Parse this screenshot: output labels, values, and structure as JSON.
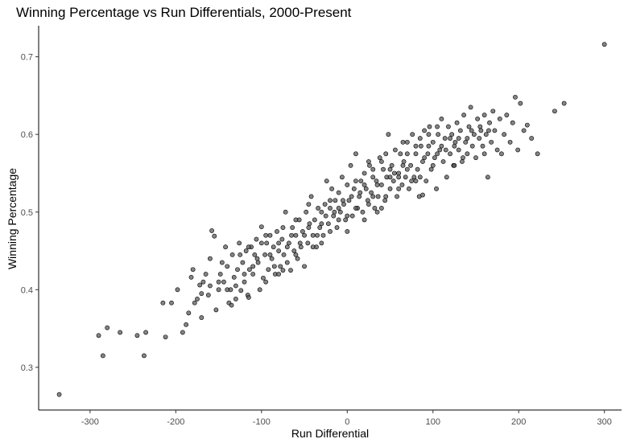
{
  "chart_data": {
    "type": "scatter",
    "title": "Winning Percentage vs Run Differentials, 2000-Present",
    "xlabel": "Run Differential",
    "ylabel": "Winning Percentage",
    "xlim": [
      -360,
      320
    ],
    "ylim": [
      0.245,
      0.74
    ],
    "xticks": [
      -300,
      -200,
      -100,
      0,
      100,
      200,
      300
    ],
    "yticks": [
      0.3,
      0.4,
      0.5,
      0.6,
      0.7
    ],
    "grid": false,
    "point_color": "#555555",
    "points": [
      [
        -336,
        0.265
      ],
      [
        -290,
        0.341
      ],
      [
        -285,
        0.315
      ],
      [
        -280,
        0.351
      ],
      [
        -265,
        0.345
      ],
      [
        -245,
        0.341
      ],
      [
        -237,
        0.315
      ],
      [
        -235,
        0.345
      ],
      [
        -215,
        0.383
      ],
      [
        -212,
        0.339
      ],
      [
        -205,
        0.383
      ],
      [
        -198,
        0.4
      ],
      [
        -192,
        0.345
      ],
      [
        -188,
        0.355
      ],
      [
        -185,
        0.37
      ],
      [
        -182,
        0.416
      ],
      [
        -180,
        0.426
      ],
      [
        -178,
        0.383
      ],
      [
        -175,
        0.388
      ],
      [
        -172,
        0.406
      ],
      [
        -170,
        0.364
      ],
      [
        -168,
        0.41
      ],
      [
        -165,
        0.42
      ],
      [
        -162,
        0.393
      ],
      [
        -160,
        0.44
      ],
      [
        -158,
        0.476
      ],
      [
        -155,
        0.469
      ],
      [
        -153,
        0.374
      ],
      [
        -150,
        0.4
      ],
      [
        -148,
        0.42
      ],
      [
        -146,
        0.435
      ],
      [
        -144,
        0.41
      ],
      [
        -142,
        0.455
      ],
      [
        -140,
        0.43
      ],
      [
        -138,
        0.383
      ],
      [
        -136,
        0.4
      ],
      [
        -134,
        0.445
      ],
      [
        -132,
        0.416
      ],
      [
        -130,
        0.388
      ],
      [
        -128,
        0.426
      ],
      [
        -126,
        0.46
      ],
      [
        -124,
        0.399
      ],
      [
        -122,
        0.435
      ],
      [
        -120,
        0.41
      ],
      [
        -118,
        0.45
      ],
      [
        -116,
        0.393
      ],
      [
        -114,
        0.426
      ],
      [
        -112,
        0.455
      ],
      [
        -110,
        0.42
      ],
      [
        -108,
        0.445
      ],
      [
        -106,
        0.465
      ],
      [
        -104,
        0.435
      ],
      [
        -102,
        0.4
      ],
      [
        -100,
        0.481
      ],
      [
        -98,
        0.415
      ],
      [
        -96,
        0.445
      ],
      [
        -94,
        0.46
      ],
      [
        -92,
        0.426
      ],
      [
        -90,
        0.47
      ],
      [
        -88,
        0.44
      ],
      [
        -86,
        0.455
      ],
      [
        -84,
        0.42
      ],
      [
        -82,
        0.475
      ],
      [
        -80,
        0.45
      ],
      [
        -78,
        0.43
      ],
      [
        -76,
        0.465
      ],
      [
        -74,
        0.445
      ],
      [
        -72,
        0.5
      ],
      [
        -70,
        0.435
      ],
      [
        -68,
        0.46
      ],
      [
        -66,
        0.425
      ],
      [
        -64,
        0.48
      ],
      [
        -62,
        0.45
      ],
      [
        -60,
        0.47
      ],
      [
        -58,
        0.44
      ],
      [
        -56,
        0.49
      ],
      [
        -54,
        0.455
      ],
      [
        -52,
        0.475
      ],
      [
        -50,
        0.43
      ],
      [
        -48,
        0.5
      ],
      [
        -46,
        0.46
      ],
      [
        -44,
        0.485
      ],
      [
        -42,
        0.52
      ],
      [
        -40,
        0.47
      ],
      [
        -38,
        0.49
      ],
      [
        -36,
        0.455
      ],
      [
        -34,
        0.505
      ],
      [
        -32,
        0.48
      ],
      [
        -30,
        0.5
      ],
      [
        -28,
        0.47
      ],
      [
        -26,
        0.51
      ],
      [
        -24,
        0.54
      ],
      [
        -22,
        0.485
      ],
      [
        -20,
        0.505
      ],
      [
        -18,
        0.53
      ],
      [
        -16,
        0.495
      ],
      [
        -14,
        0.515
      ],
      [
        -12,
        0.48
      ],
      [
        -10,
        0.525
      ],
      [
        -8,
        0.5
      ],
      [
        -6,
        0.545
      ],
      [
        -4,
        0.51
      ],
      [
        -2,
        0.49
      ],
      [
        0,
        0.535
      ],
      [
        2,
        0.515
      ],
      [
        4,
        0.56
      ],
      [
        6,
        0.495
      ],
      [
        8,
        0.53
      ],
      [
        10,
        0.575
      ],
      [
        12,
        0.505
      ],
      [
        14,
        0.52
      ],
      [
        16,
        0.54
      ],
      [
        18,
        0.5
      ],
      [
        20,
        0.55
      ],
      [
        22,
        0.53
      ],
      [
        24,
        0.515
      ],
      [
        26,
        0.56
      ],
      [
        28,
        0.525
      ],
      [
        30,
        0.545
      ],
      [
        32,
        0.505
      ],
      [
        34,
        0.54
      ],
      [
        36,
        0.52
      ],
      [
        38,
        0.57
      ],
      [
        40,
        0.535
      ],
      [
        42,
        0.555
      ],
      [
        44,
        0.515
      ],
      [
        46,
        0.545
      ],
      [
        48,
        0.6
      ],
      [
        50,
        0.53
      ],
      [
        52,
        0.56
      ],
      [
        54,
        0.54
      ],
      [
        56,
        0.58
      ],
      [
        58,
        0.52
      ],
      [
        60,
        0.55
      ],
      [
        62,
        0.575
      ],
      [
        64,
        0.535
      ],
      [
        66,
        0.565
      ],
      [
        68,
        0.545
      ],
      [
        70,
        0.59
      ],
      [
        72,
        0.53
      ],
      [
        74,
        0.56
      ],
      [
        76,
        0.6
      ],
      [
        78,
        0.545
      ],
      [
        80,
        0.575
      ],
      [
        82,
        0.555
      ],
      [
        84,
        0.52
      ],
      [
        86,
        0.585
      ],
      [
        88,
        0.565
      ],
      [
        90,
        0.605
      ],
      [
        92,
        0.54
      ],
      [
        94,
        0.575
      ],
      [
        96,
        0.61
      ],
      [
        98,
        0.555
      ],
      [
        100,
        0.59
      ],
      [
        102,
        0.57
      ],
      [
        104,
        0.53
      ],
      [
        106,
        0.6
      ],
      [
        108,
        0.58
      ],
      [
        110,
        0.62
      ],
      [
        112,
        0.565
      ],
      [
        114,
        0.595
      ],
      [
        116,
        0.545
      ],
      [
        118,
        0.61
      ],
      [
        120,
        0.575
      ],
      [
        122,
        0.6
      ],
      [
        124,
        0.56
      ],
      [
        126,
        0.59
      ],
      [
        128,
        0.615
      ],
      [
        130,
        0.58
      ],
      [
        132,
        0.605
      ],
      [
        134,
        0.565
      ],
      [
        136,
        0.625
      ],
      [
        138,
        0.59
      ],
      [
        140,
        0.575
      ],
      [
        142,
        0.61
      ],
      [
        144,
        0.635
      ],
      [
        146,
        0.585
      ],
      [
        148,
        0.6
      ],
      [
        150,
        0.57
      ],
      [
        152,
        0.62
      ],
      [
        154,
        0.595
      ],
      [
        156,
        0.605
      ],
      [
        158,
        0.585
      ],
      [
        160,
        0.625
      ],
      [
        162,
        0.6
      ],
      [
        164,
        0.545
      ],
      [
        166,
        0.615
      ],
      [
        168,
        0.59
      ],
      [
        170,
        0.63
      ],
      [
        172,
        0.605
      ],
      [
        175,
        0.58
      ],
      [
        178,
        0.62
      ],
      [
        180,
        0.575
      ],
      [
        183,
        0.6
      ],
      [
        186,
        0.625
      ],
      [
        190,
        0.59
      ],
      [
        193,
        0.615
      ],
      [
        196,
        0.648
      ],
      [
        199,
        0.58
      ],
      [
        202,
        0.64
      ],
      [
        206,
        0.605
      ],
      [
        210,
        0.612
      ],
      [
        215,
        0.595
      ],
      [
        222,
        0.575
      ],
      [
        242,
        0.63
      ],
      [
        253,
        0.64
      ],
      [
        300,
        0.716
      ],
      [
        -70,
        0.455
      ],
      [
        -60,
        0.445
      ],
      [
        -40,
        0.455
      ],
      [
        -20,
        0.475
      ],
      [
        -10,
        0.49
      ],
      [
        10,
        0.505
      ],
      [
        20,
        0.49
      ],
      [
        30,
        0.52
      ],
      [
        40,
        0.505
      ],
      [
        50,
        0.545
      ],
      [
        60,
        0.53
      ],
      [
        70,
        0.555
      ],
      [
        80,
        0.54
      ],
      [
        90,
        0.57
      ],
      [
        100,
        0.56
      ],
      [
        110,
        0.585
      ],
      [
        120,
        0.595
      ],
      [
        130,
        0.595
      ],
      [
        -120,
        0.42
      ],
      [
        -130,
        0.405
      ],
      [
        -110,
        0.43
      ],
      [
        -90,
        0.445
      ],
      [
        -80,
        0.46
      ],
      [
        -100,
        0.46
      ],
      [
        -50,
        0.47
      ],
      [
        -30,
        0.485
      ],
      [
        -10,
        0.505
      ],
      [
        0,
        0.495
      ],
      [
        15,
        0.525
      ],
      [
        35,
        0.535
      ],
      [
        45,
        0.52
      ],
      [
        65,
        0.56
      ],
      [
        75,
        0.54
      ],
      [
        95,
        0.585
      ],
      [
        85,
        0.545
      ],
      [
        105,
        0.575
      ],
      [
        115,
        0.58
      ],
      [
        125,
        0.585
      ],
      [
        135,
        0.57
      ],
      [
        145,
        0.605
      ],
      [
        155,
        0.61
      ],
      [
        165,
        0.605
      ],
      [
        -150,
        0.41
      ],
      [
        -140,
        0.4
      ],
      [
        -160,
        0.405
      ],
      [
        -170,
        0.395
      ],
      [
        -125,
        0.445
      ],
      [
        -105,
        0.44
      ],
      [
        -85,
        0.43
      ],
      [
        -65,
        0.47
      ],
      [
        -45,
        0.48
      ],
      [
        -25,
        0.495
      ],
      [
        -5,
        0.515
      ],
      [
        25,
        0.51
      ],
      [
        55,
        0.55
      ],
      [
        95,
        0.6
      ],
      [
        30,
        0.555
      ],
      [
        70,
        0.575
      ],
      [
        -75,
        0.48
      ],
      [
        -55,
        0.46
      ],
      [
        -35,
        0.47
      ],
      [
        -15,
        0.5
      ],
      [
        5,
        0.52
      ],
      [
        85,
        0.595
      ],
      [
        105,
        0.61
      ],
      [
        125,
        0.56
      ],
      [
        40,
        0.565
      ],
      [
        60,
        0.545
      ],
      [
        -95,
        0.47
      ],
      [
        -115,
        0.455
      ],
      [
        140,
        0.595
      ],
      [
        160,
        0.575
      ],
      [
        -45,
        0.51
      ],
      [
        -20,
        0.515
      ],
      [
        20,
        0.535
      ],
      [
        50,
        0.555
      ],
      [
        80,
        0.585
      ],
      [
        -80,
        0.42
      ],
      [
        -60,
        0.49
      ],
      [
        -30,
        0.46
      ],
      [
        10,
        0.54
      ],
      [
        25,
        0.565
      ],
      [
        45,
        0.575
      ],
      [
        65,
        0.59
      ],
      [
        -135,
        0.38
      ],
      [
        -115,
        0.39
      ],
      [
        -95,
        0.41
      ],
      [
        -75,
        0.425
      ],
      [
        0,
        0.475
      ],
      [
        35,
        0.5
      ],
      [
        88,
        0.522
      ]
    ]
  }
}
